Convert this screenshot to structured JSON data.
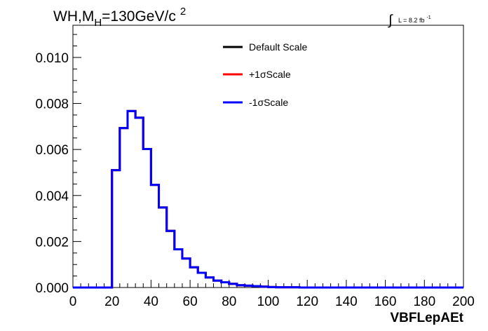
{
  "chart_data": {
    "type": "histogram",
    "title": {
      "process": "WH,M",
      "subscript": "H",
      "mass": "=130GeV/c",
      "superscript": "2"
    },
    "lumi": {
      "symbol": "∫",
      "text": "L = 8.2 fb",
      "superscript": "-1"
    },
    "xlabel": "VBFLepAEt",
    "xlim": [
      0,
      200
    ],
    "ylim": [
      0,
      0.0114
    ],
    "x_ticks": [
      0,
      20,
      40,
      60,
      80,
      100,
      120,
      140,
      160,
      180,
      200
    ],
    "x_tick_labels": [
      "0",
      "20",
      "40",
      "60",
      "80",
      "100",
      "120",
      "140",
      "160",
      "180",
      "200"
    ],
    "y_ticks": [
      0,
      0.002,
      0.004,
      0.006,
      0.008,
      0.01
    ],
    "y_tick_labels": [
      "0.000",
      "0.002",
      "0.004",
      "0.006",
      "0.008",
      "0.010"
    ],
    "bin_edges": [
      0,
      4,
      8,
      12,
      16,
      20,
      24,
      28,
      32,
      36,
      40,
      44,
      48,
      52,
      56,
      60,
      64,
      68,
      72,
      76,
      80,
      84,
      88,
      92,
      96,
      100,
      104,
      108,
      112,
      116,
      120,
      124,
      128,
      132,
      136,
      140,
      144,
      148,
      152,
      156,
      160,
      164,
      168,
      172,
      176,
      180,
      184,
      188,
      192,
      196,
      200
    ],
    "series": [
      {
        "name": "Default Scale",
        "color": "#000000",
        "values": [
          0,
          0,
          0,
          0,
          0,
          0.0051,
          0.00693,
          0.00767,
          0.00738,
          0.00602,
          0.00446,
          0.00348,
          0.00246,
          0.00166,
          0.00126,
          0.00088,
          0.00064,
          0.00044,
          0.0003,
          0.00023,
          0.00016,
          0.0001,
          8e-05,
          6e-05,
          4e-05,
          2e-05,
          1e-05,
          1e-05,
          1e-05,
          0,
          0,
          0,
          0,
          0,
          0,
          0,
          0,
          0,
          0,
          0,
          0,
          0,
          0,
          0,
          0,
          0,
          0,
          0,
          0,
          0
        ]
      },
      {
        "name": "+1σScale",
        "color": "#ff0000",
        "values": [
          0,
          0,
          0,
          0,
          0,
          0.0051,
          0.00693,
          0.00767,
          0.00738,
          0.00602,
          0.00446,
          0.00348,
          0.00246,
          0.00166,
          0.00126,
          0.00088,
          0.00064,
          0.00044,
          0.0003,
          0.00023,
          0.00016,
          0.0001,
          8e-05,
          6e-05,
          4e-05,
          2e-05,
          1e-05,
          1e-05,
          1e-05,
          0,
          0,
          0,
          0,
          0,
          0,
          0,
          0,
          0,
          0,
          0,
          0,
          0,
          0,
          0,
          0,
          0,
          0,
          0,
          0,
          0
        ]
      },
      {
        "name": "-1σScale",
        "color": "#0000ff",
        "values": [
          0,
          0,
          0,
          0,
          0,
          0.0051,
          0.00693,
          0.00767,
          0.00738,
          0.00602,
          0.00446,
          0.00348,
          0.00246,
          0.00166,
          0.00126,
          0.00088,
          0.00064,
          0.00044,
          0.0003,
          0.00023,
          0.00016,
          0.0001,
          8e-05,
          6e-05,
          4e-05,
          2e-05,
          1e-05,
          1e-05,
          1e-05,
          0,
          0,
          0,
          0,
          0,
          0,
          0,
          0,
          0,
          0,
          0,
          0,
          0,
          0,
          0,
          0,
          0,
          0,
          0,
          0,
          0
        ]
      }
    ],
    "legend": {
      "position": "top-center",
      "entries": [
        "Default Scale",
        "+1σScale",
        "-1σScale"
      ]
    },
    "grid": false
  }
}
